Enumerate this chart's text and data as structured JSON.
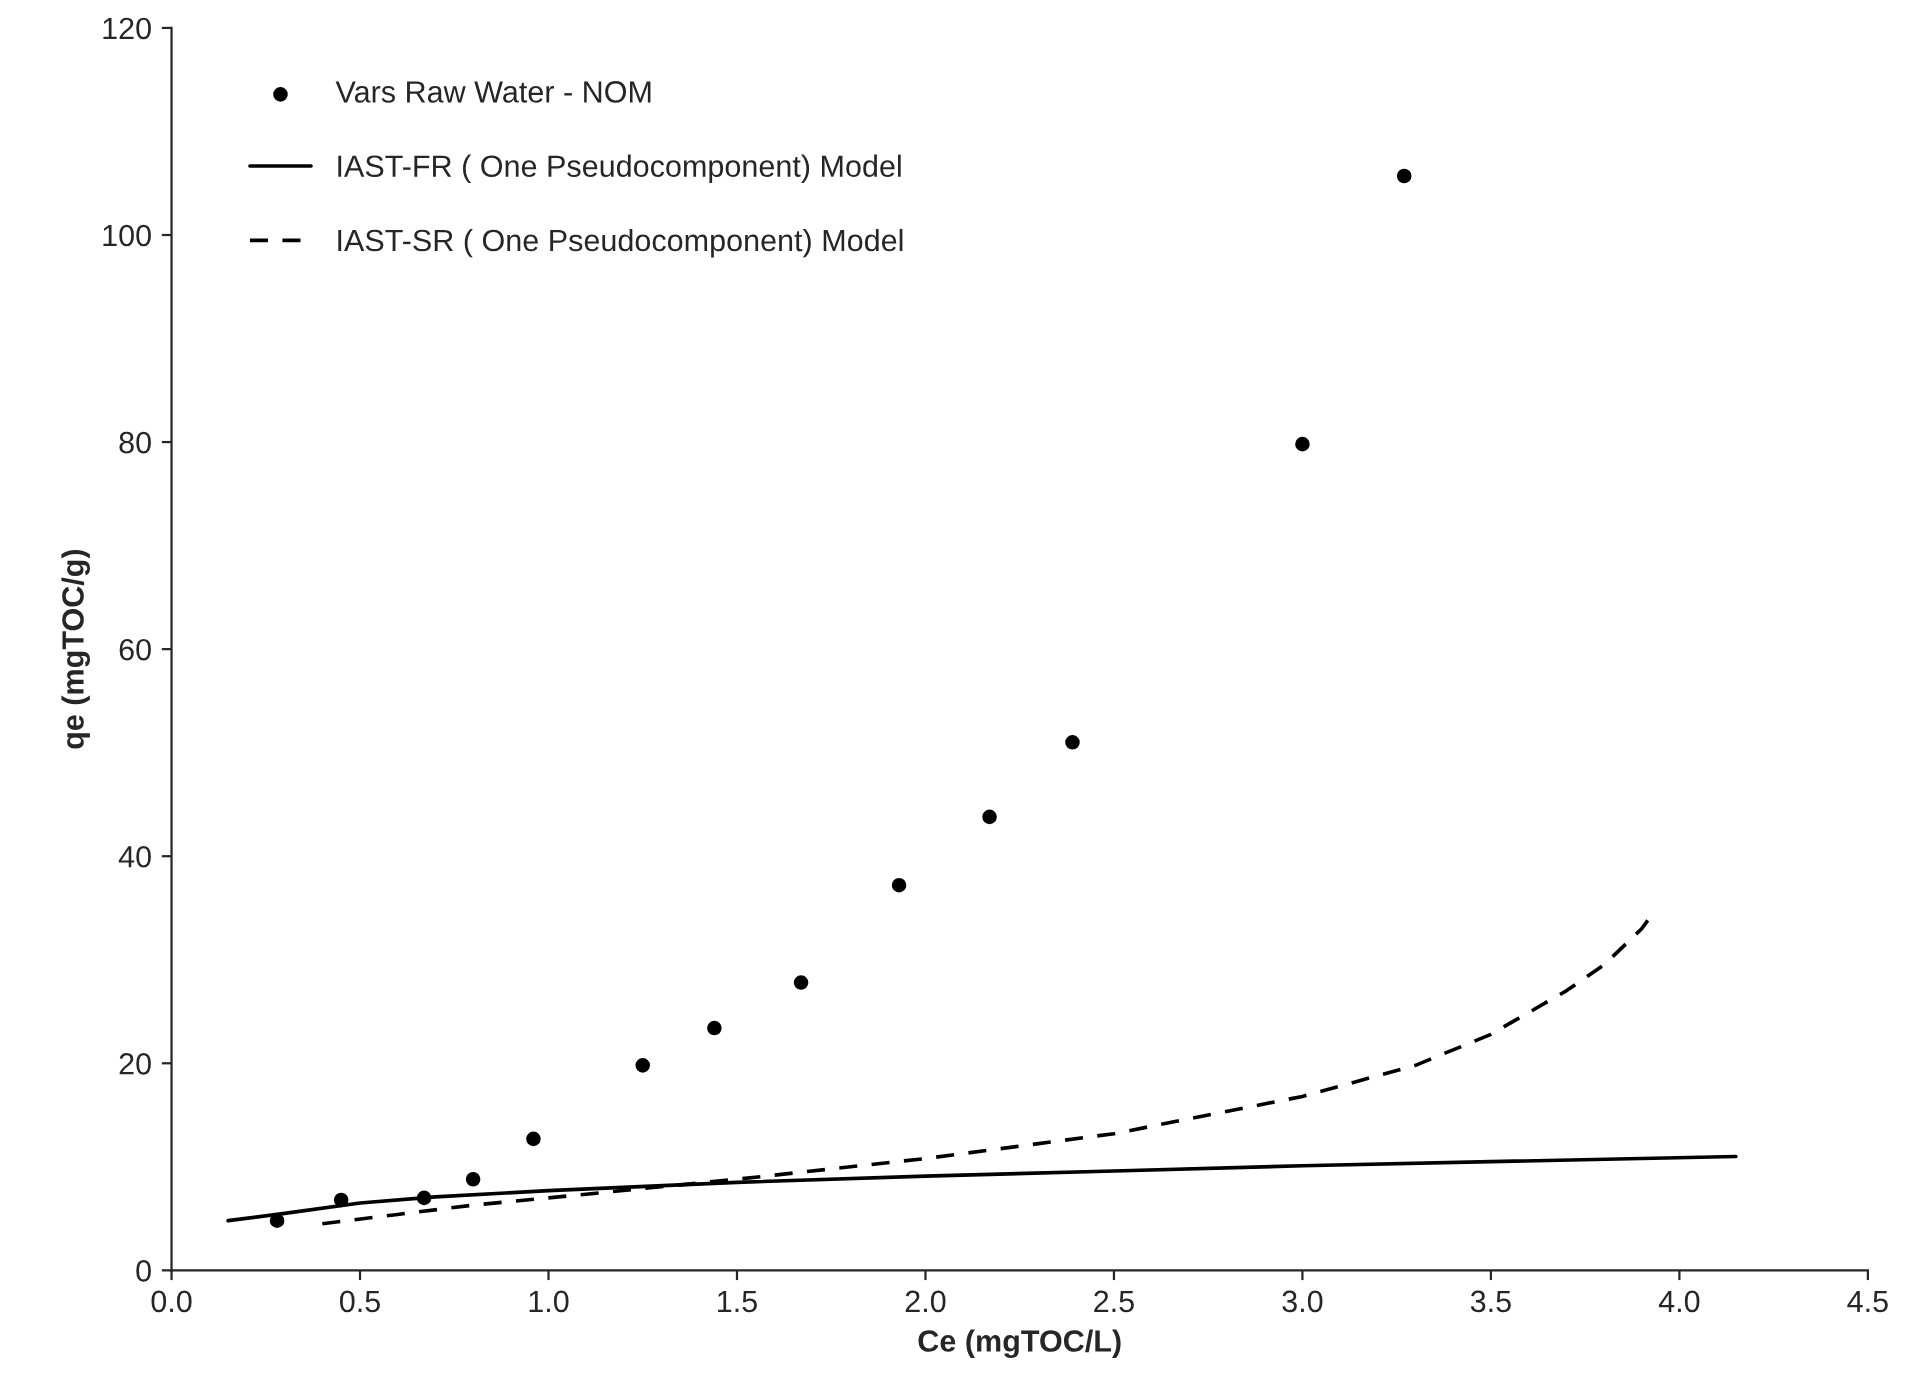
{
  "chart_data": {
    "type": "scatter",
    "xlabel": "Ce (mgTOC/L)",
    "ylabel": "qe (mgTOC/g)",
    "xlim": [
      0,
      4.5
    ],
    "xticks": [
      {
        "value": 0,
        "label": "0.0"
      },
      {
        "value": 0.5,
        "label": "0.5"
      },
      {
        "value": 1,
        "label": "1.0"
      },
      {
        "value": 1.5,
        "label": "1.5"
      },
      {
        "value": 2,
        "label": "2.0"
      },
      {
        "value": 2.5,
        "label": "2.5"
      },
      {
        "value": 3,
        "label": "3.0"
      },
      {
        "value": 3.5,
        "label": "3.5"
      },
      {
        "value": 4,
        "label": "4.0"
      },
      {
        "value": 4.5,
        "label": "4.5"
      }
    ],
    "ylim": [
      0,
      120
    ],
    "yticks": [
      0,
      20,
      40,
      60,
      80,
      100,
      120
    ],
    "grid": false,
    "legend": "top left",
    "series": [
      {
        "name": "Vars Raw Water - NOM",
        "color": "#000000",
        "marker": "circle",
        "x": [
          0.28,
          0.45,
          0.67,
          0.8,
          0.96,
          1.25,
          1.44,
          1.67,
          1.93,
          2.17,
          2.39,
          3.0,
          3.27
        ],
        "values": [
          4.8,
          6.8,
          7.0,
          8.8,
          12.7,
          19.8,
          23.4,
          27.8,
          37.2,
          43.8,
          51.0,
          79.8,
          105.7
        ]
      },
      {
        "name": "IAST-FR ( One Pseudocomponent) Model",
        "type": "line",
        "color": "#000000",
        "line_style": "solid",
        "x": [
          0.15,
          0.3,
          0.5,
          0.7,
          1.0,
          1.5,
          2.0,
          2.5,
          3.0,
          3.5,
          4.15
        ],
        "values": [
          4.8,
          5.5,
          6.5,
          7.1,
          7.7,
          8.5,
          9.1,
          9.6,
          10.1,
          10.5,
          11.0
        ]
      },
      {
        "name": "IAST-SR ( One Pseudocomponent) Model",
        "type": "line",
        "color": "#000000",
        "line_style": "dashed",
        "x": [
          0.4,
          0.6,
          0.8,
          1.0,
          1.5,
          2.0,
          2.5,
          3.0,
          3.3,
          3.5,
          3.7,
          3.8,
          3.9,
          3.93
        ],
        "values": [
          4.5,
          5.4,
          6.3,
          7.0,
          8.8,
          10.8,
          13.2,
          16.8,
          19.8,
          22.8,
          27.0,
          29.5,
          33.0,
          34.5
        ]
      }
    ]
  }
}
